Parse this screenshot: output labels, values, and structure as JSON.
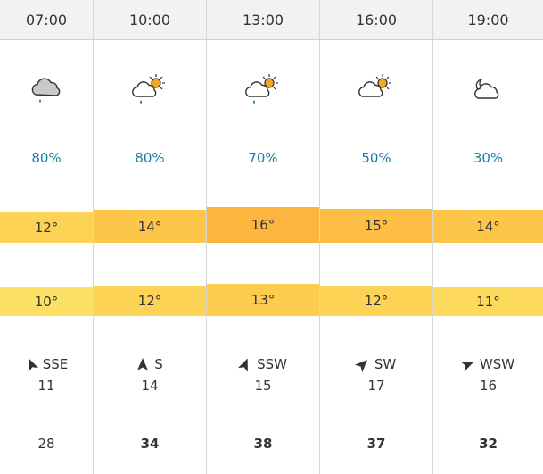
{
  "columns": [
    {
      "time": "07:00",
      "icon": "cloud-rain-icon",
      "precip": "80%",
      "max_temp": "12°",
      "min_temp": "10°",
      "wind_dir": "SSE",
      "wind_speed": "11",
      "gust": "28",
      "gust_bold": false,
      "max_color": "#fdd356",
      "min_color": "#fde066",
      "wind_deg": 338
    },
    {
      "time": "10:00",
      "icon": "sun-cloud-rain-icon",
      "precip": "80%",
      "max_temp": "14°",
      "min_temp": "12°",
      "wind_dir": "S",
      "wind_speed": "14",
      "gust": "34",
      "gust_bold": true,
      "max_color": "#fdc64a",
      "min_color": "#fdd356",
      "wind_deg": 0
    },
    {
      "time": "13:00",
      "icon": "sun-cloud-rain-icon",
      "precip": "70%",
      "max_temp": "16°",
      "min_temp": "13°",
      "wind_dir": "SSW",
      "wind_speed": "15",
      "gust": "38",
      "gust_bold": true,
      "max_color": "#fcb53f",
      "min_color": "#fdcc4f",
      "wind_deg": 22
    },
    {
      "time": "16:00",
      "icon": "sun-cloud-icon",
      "precip": "50%",
      "max_temp": "15°",
      "min_temp": "12°",
      "wind_dir": "SW",
      "wind_speed": "17",
      "gust": "37",
      "gust_bold": true,
      "max_color": "#fdbe46",
      "min_color": "#fdd356",
      "wind_deg": 45
    },
    {
      "time": "19:00",
      "icon": "partly-cloudy-night-icon",
      "precip": "30%",
      "max_temp": "14°",
      "min_temp": "11°",
      "wind_dir": "WSW",
      "wind_speed": "16",
      "gust": "32",
      "gust_bold": true,
      "max_color": "#fdc64a",
      "min_color": "#fdd95c",
      "wind_deg": 68
    }
  ]
}
